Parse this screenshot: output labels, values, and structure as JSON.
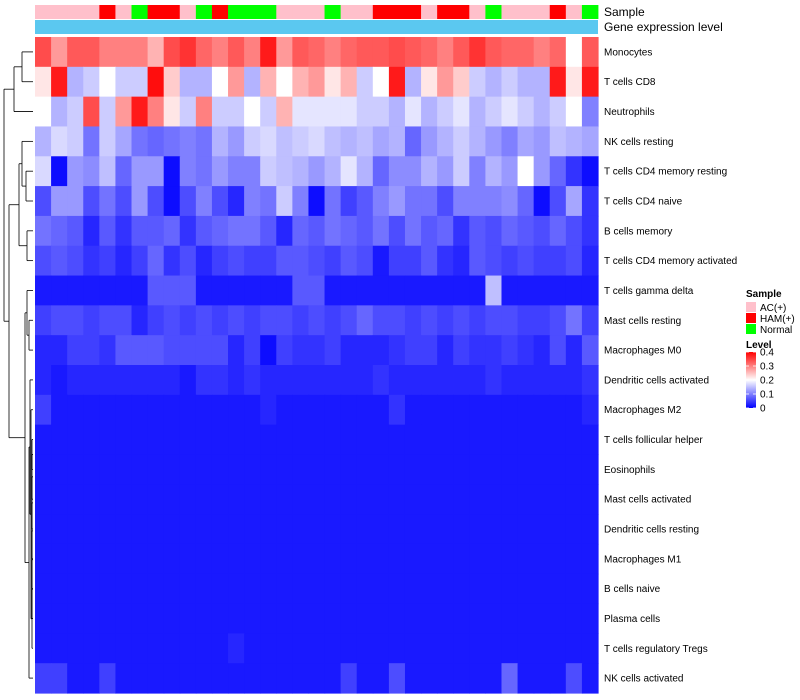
{
  "chart_data": {
    "type": "heatmap",
    "title": "",
    "annotation_tracks": [
      {
        "name": "Sample"
      },
      {
        "name": "Gene expression level"
      }
    ],
    "sample_groups": [
      "AC",
      "AC",
      "AC",
      "AC",
      "H",
      "AC",
      "N",
      "H",
      "H",
      "AC",
      "N",
      "H",
      "N",
      "N",
      "N",
      "AC",
      "AC",
      "AC",
      "N",
      "AC",
      "AC",
      "H",
      "H",
      "H",
      "AC",
      "H",
      "H",
      "AC",
      "N",
      "AC",
      "AC",
      "AC",
      "H",
      "AC",
      "N"
    ],
    "rows": [
      "Monocytes",
      "T cells CD8",
      "Neutrophils",
      "NK cells resting",
      "T cells CD4 memory resting",
      "T cells CD4 naive",
      "B cells memory",
      "T cells CD4 memory activated",
      "T cells gamma delta",
      "Mast cells resting",
      "Macrophages M0",
      "Dendritic cells activated",
      "Macrophages M2",
      "T cells follicular helper",
      "Eosinophils",
      "Mast cells activated",
      "Dendritic cells resting",
      "Macrophages M1",
      "B cells naive",
      "Plasma cells",
      "T cells regulatory  Tregs",
      "NK cells activated"
    ],
    "values": [
      [
        0.34,
        0.28,
        0.33,
        0.33,
        0.3,
        0.3,
        0.3,
        0.26,
        0.34,
        0.36,
        0.32,
        0.3,
        0.33,
        0.3,
        0.38,
        0.28,
        0.33,
        0.32,
        0.3,
        0.32,
        0.33,
        0.33,
        0.34,
        0.33,
        0.32,
        0.3,
        0.33,
        0.36,
        0.33,
        0.32,
        0.32,
        0.3,
        0.32,
        0.2,
        0.33
      ],
      [
        0.22,
        0.38,
        0.14,
        0.16,
        0.2,
        0.16,
        0.16,
        0.39,
        0.24,
        0.14,
        0.14,
        0.2,
        0.28,
        0.14,
        0.26,
        0.2,
        0.26,
        0.28,
        0.22,
        0.26,
        0.16,
        0.2,
        0.38,
        0.14,
        0.22,
        0.28,
        0.24,
        0.16,
        0.14,
        0.16,
        0.14,
        0.14,
        0.38,
        0.22,
        0.38
      ],
      [
        0.2,
        0.14,
        0.16,
        0.34,
        0.16,
        0.28,
        0.38,
        0.3,
        0.22,
        0.16,
        0.3,
        0.16,
        0.16,
        0.2,
        0.16,
        0.26,
        0.18,
        0.18,
        0.18,
        0.18,
        0.16,
        0.16,
        0.14,
        0.18,
        0.14,
        0.16,
        0.18,
        0.14,
        0.16,
        0.18,
        0.16,
        0.14,
        0.16,
        0.2,
        0.1
      ],
      [
        0.14,
        0.17,
        0.16,
        0.09,
        0.16,
        0.13,
        0.09,
        0.08,
        0.09,
        0.1,
        0.09,
        0.14,
        0.12,
        0.16,
        0.17,
        0.15,
        0.16,
        0.17,
        0.15,
        0.14,
        0.15,
        0.13,
        0.14,
        0.08,
        0.12,
        0.14,
        0.16,
        0.14,
        0.12,
        0.1,
        0.13,
        0.12,
        0.15,
        0.14,
        0.13
      ],
      [
        0.17,
        0.01,
        0.12,
        0.11,
        0.15,
        0.08,
        0.12,
        0.12,
        0.01,
        0.1,
        0.09,
        0.12,
        0.1,
        0.1,
        0.16,
        0.15,
        0.14,
        0.12,
        0.14,
        0.18,
        0.14,
        0.08,
        0.11,
        0.11,
        0.14,
        0.12,
        0.16,
        0.1,
        0.14,
        0.12,
        0.2,
        0.12,
        0.08,
        0.04,
        0.01
      ],
      [
        0.06,
        0.12,
        0.12,
        0.06,
        0.09,
        0.06,
        0.12,
        0.06,
        0.01,
        0.06,
        0.1,
        0.06,
        0.03,
        0.1,
        0.09,
        0.16,
        0.1,
        0.01,
        0.09,
        0.05,
        0.07,
        0.1,
        0.12,
        0.09,
        0.09,
        0.06,
        0.1,
        0.1,
        0.1,
        0.11,
        0.08,
        0.01,
        0.06,
        0.13,
        0.04
      ],
      [
        0.09,
        0.08,
        0.07,
        0.03,
        0.07,
        0.04,
        0.07,
        0.07,
        0.08,
        0.04,
        0.07,
        0.08,
        0.09,
        0.09,
        0.07,
        0.03,
        0.08,
        0.07,
        0.09,
        0.08,
        0.07,
        0.09,
        0.06,
        0.09,
        0.07,
        0.08,
        0.04,
        0.07,
        0.06,
        0.08,
        0.07,
        0.06,
        0.08,
        0.06,
        0.04
      ],
      [
        0.06,
        0.07,
        0.06,
        0.04,
        0.05,
        0.03,
        0.05,
        0.08,
        0.04,
        0.06,
        0.03,
        0.05,
        0.06,
        0.05,
        0.05,
        0.07,
        0.07,
        0.06,
        0.05,
        0.07,
        0.06,
        0.02,
        0.05,
        0.05,
        0.07,
        0.04,
        0.03,
        0.07,
        0.06,
        0.05,
        0.06,
        0.05,
        0.05,
        0.06,
        0.03
      ],
      [
        0.02,
        0.02,
        0.02,
        0.02,
        0.02,
        0.02,
        0.02,
        0.07,
        0.07,
        0.07,
        0.02,
        0.02,
        0.02,
        0.02,
        0.02,
        0.02,
        0.07,
        0.07,
        0.02,
        0.02,
        0.02,
        0.02,
        0.02,
        0.02,
        0.02,
        0.02,
        0.02,
        0.02,
        0.15,
        0.02,
        0.02,
        0.02,
        0.02,
        0.02,
        0.02
      ],
      [
        0.05,
        0.06,
        0.06,
        0.05,
        0.06,
        0.06,
        0.03,
        0.05,
        0.06,
        0.05,
        0.06,
        0.05,
        0.06,
        0.05,
        0.06,
        0.06,
        0.05,
        0.06,
        0.05,
        0.06,
        0.08,
        0.06,
        0.06,
        0.05,
        0.06,
        0.05,
        0.06,
        0.05,
        0.06,
        0.06,
        0.05,
        0.05,
        0.06,
        0.09,
        0.05
      ],
      [
        0.03,
        0.03,
        0.05,
        0.05,
        0.04,
        0.07,
        0.07,
        0.07,
        0.06,
        0.06,
        0.06,
        0.06,
        0.03,
        0.05,
        0.01,
        0.05,
        0.04,
        0.04,
        0.05,
        0.03,
        0.03,
        0.03,
        0.04,
        0.05,
        0.05,
        0.03,
        0.05,
        0.04,
        0.04,
        0.05,
        0.04,
        0.03,
        0.06,
        0.03,
        0.07
      ],
      [
        0.03,
        0.02,
        0.03,
        0.03,
        0.03,
        0.03,
        0.03,
        0.03,
        0.03,
        0.02,
        0.04,
        0.04,
        0.03,
        0.04,
        0.03,
        0.03,
        0.03,
        0.03,
        0.03,
        0.03,
        0.03,
        0.04,
        0.03,
        0.03,
        0.03,
        0.03,
        0.03,
        0.03,
        0.04,
        0.03,
        0.03,
        0.03,
        0.03,
        0.03,
        0.04
      ],
      [
        0.05,
        0.02,
        0.02,
        0.02,
        0.02,
        0.02,
        0.02,
        0.02,
        0.02,
        0.02,
        0.02,
        0.02,
        0.02,
        0.02,
        0.03,
        0.02,
        0.02,
        0.02,
        0.02,
        0.02,
        0.02,
        0.02,
        0.04,
        0.02,
        0.02,
        0.02,
        0.02,
        0.02,
        0.02,
        0.02,
        0.02,
        0.02,
        0.02,
        0.02,
        0.03
      ],
      [
        0.02,
        0.02,
        0.02,
        0.02,
        0.02,
        0.02,
        0.02,
        0.02,
        0.02,
        0.02,
        0.02,
        0.02,
        0.02,
        0.02,
        0.02,
        0.02,
        0.02,
        0.02,
        0.02,
        0.02,
        0.02,
        0.02,
        0.02,
        0.02,
        0.02,
        0.02,
        0.02,
        0.02,
        0.02,
        0.02,
        0.02,
        0.02,
        0.02,
        0.02,
        0.02
      ],
      [
        0.02,
        0.02,
        0.02,
        0.02,
        0.02,
        0.02,
        0.02,
        0.02,
        0.02,
        0.02,
        0.02,
        0.02,
        0.02,
        0.02,
        0.02,
        0.02,
        0.02,
        0.02,
        0.02,
        0.02,
        0.02,
        0.02,
        0.02,
        0.02,
        0.02,
        0.02,
        0.02,
        0.02,
        0.02,
        0.02,
        0.02,
        0.02,
        0.02,
        0.02,
        0.02
      ],
      [
        0.02,
        0.02,
        0.02,
        0.02,
        0.02,
        0.02,
        0.02,
        0.02,
        0.02,
        0.02,
        0.02,
        0.02,
        0.02,
        0.02,
        0.02,
        0.02,
        0.02,
        0.02,
        0.02,
        0.02,
        0.02,
        0.02,
        0.02,
        0.02,
        0.02,
        0.02,
        0.02,
        0.02,
        0.02,
        0.02,
        0.02,
        0.02,
        0.02,
        0.02,
        0.02
      ],
      [
        0.02,
        0.02,
        0.02,
        0.02,
        0.02,
        0.02,
        0.02,
        0.02,
        0.02,
        0.02,
        0.02,
        0.02,
        0.02,
        0.02,
        0.02,
        0.02,
        0.02,
        0.02,
        0.02,
        0.02,
        0.02,
        0.02,
        0.02,
        0.02,
        0.02,
        0.02,
        0.02,
        0.02,
        0.02,
        0.02,
        0.02,
        0.02,
        0.02,
        0.02,
        0.02
      ],
      [
        0.02,
        0.02,
        0.02,
        0.02,
        0.02,
        0.02,
        0.02,
        0.02,
        0.02,
        0.02,
        0.02,
        0.02,
        0.02,
        0.02,
        0.02,
        0.02,
        0.02,
        0.02,
        0.02,
        0.02,
        0.02,
        0.02,
        0.02,
        0.02,
        0.02,
        0.02,
        0.02,
        0.02,
        0.02,
        0.02,
        0.02,
        0.02,
        0.02,
        0.02,
        0.02
      ],
      [
        0.02,
        0.02,
        0.02,
        0.02,
        0.02,
        0.02,
        0.02,
        0.02,
        0.02,
        0.02,
        0.02,
        0.02,
        0.02,
        0.02,
        0.02,
        0.02,
        0.02,
        0.02,
        0.02,
        0.02,
        0.02,
        0.02,
        0.02,
        0.02,
        0.02,
        0.02,
        0.02,
        0.02,
        0.02,
        0.02,
        0.02,
        0.02,
        0.02,
        0.02,
        0.02
      ],
      [
        0.02,
        0.02,
        0.02,
        0.02,
        0.02,
        0.02,
        0.02,
        0.02,
        0.02,
        0.02,
        0.02,
        0.02,
        0.02,
        0.02,
        0.02,
        0.02,
        0.02,
        0.02,
        0.02,
        0.02,
        0.02,
        0.02,
        0.02,
        0.02,
        0.02,
        0.02,
        0.02,
        0.02,
        0.02,
        0.02,
        0.02,
        0.02,
        0.02,
        0.02,
        0.02
      ],
      [
        0.02,
        0.02,
        0.02,
        0.02,
        0.02,
        0.02,
        0.02,
        0.02,
        0.02,
        0.02,
        0.02,
        0.02,
        0.03,
        0.02,
        0.02,
        0.02,
        0.02,
        0.02,
        0.02,
        0.02,
        0.02,
        0.02,
        0.02,
        0.02,
        0.02,
        0.02,
        0.02,
        0.02,
        0.02,
        0.02,
        0.02,
        0.02,
        0.02,
        0.02,
        0.02
      ],
      [
        0.05,
        0.05,
        0.02,
        0.02,
        0.05,
        0.02,
        0.02,
        0.02,
        0.02,
        0.02,
        0.02,
        0.02,
        0.02,
        0.02,
        0.02,
        0.02,
        0.02,
        0.02,
        0.02,
        0.05,
        0.02,
        0.02,
        0.06,
        0.02,
        0.02,
        0.02,
        0.02,
        0.02,
        0.02,
        0.08,
        0.02,
        0.02,
        0.02,
        0.06,
        0.02
      ]
    ],
    "dendrogram": {
      "method": "hierarchical",
      "side": "left"
    },
    "color_scale": {
      "min": 0,
      "mid": 0.2,
      "max": 0.4,
      "low_color": "#0000FF",
      "mid_color": "#FFFFFF",
      "high_color": "#FF0000"
    },
    "legend_sample": {
      "title": "Sample",
      "items": [
        {
          "key": "AC",
          "label": "AC(+)",
          "color": "#FFC0CB"
        },
        {
          "key": "H",
          "label": "HAM(+)",
          "color": "#FF0000"
        },
        {
          "key": "N",
          "label": "Normal",
          "color": "#00FF00"
        }
      ]
    },
    "legend_level": {
      "title": "Level",
      "ticks": [
        0.4,
        0.3,
        0.2,
        0.1,
        0
      ],
      "tick_labels": [
        "0.4",
        "0.3",
        "0.2",
        "0.1",
        "0"
      ]
    },
    "gene_expression_color": "#5BC8F0"
  }
}
